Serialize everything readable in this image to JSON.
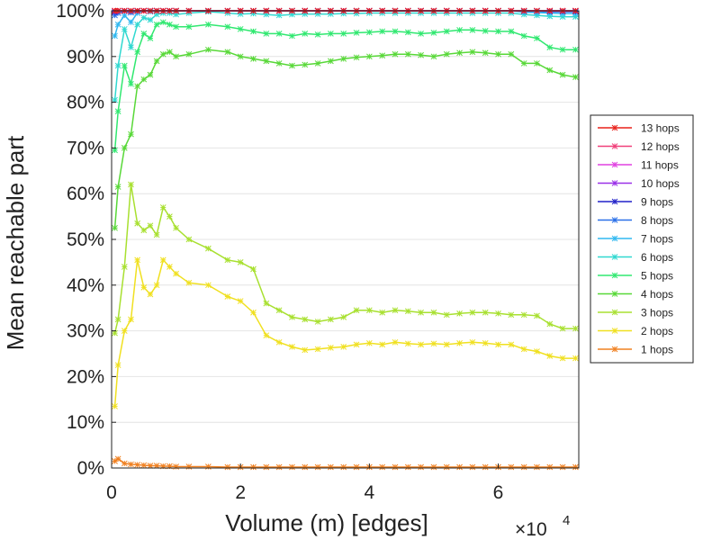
{
  "chart_data": {
    "type": "line",
    "xlabel": "Volume (m) [edges]",
    "ylabel": "Mean reachable part",
    "x_multiplier_base": "×10",
    "x_multiplier_exp": "4",
    "xlim": [
      0,
      7.25
    ],
    "ylim": [
      0,
      100
    ],
    "xticks": [
      0,
      2,
      4,
      6
    ],
    "xtick_labels": [
      "0",
      "2",
      "4",
      "6"
    ],
    "yticks": [
      0,
      10,
      20,
      30,
      40,
      50,
      60,
      70,
      80,
      90,
      100
    ],
    "ytick_labels": [
      "0%",
      "10%",
      "20%",
      "30%",
      "40%",
      "50%",
      "60%",
      "70%",
      "80%",
      "90%",
      "100%"
    ],
    "grid": true,
    "legend_position": "right",
    "x": [
      0.05,
      0.1,
      0.2,
      0.3,
      0.4,
      0.5,
      0.6,
      0.7,
      0.8,
      0.9,
      1.0,
      1.2,
      1.5,
      1.8,
      2.0,
      2.2,
      2.4,
      2.6,
      2.8,
      3.0,
      3.2,
      3.4,
      3.6,
      3.8,
      4.0,
      4.2,
      4.4,
      4.6,
      4.8,
      5.0,
      5.2,
      5.4,
      5.6,
      5.8,
      6.0,
      6.2,
      6.4,
      6.6,
      6.8,
      7.0,
      7.2
    ],
    "series": [
      {
        "name": "13 hops",
        "color": "#e8201a",
        "values": [
          100,
          100,
          100,
          100,
          100,
          100,
          100,
          100,
          100,
          100,
          100,
          100,
          100,
          100,
          100,
          100,
          100,
          100,
          100,
          100,
          100,
          100,
          100,
          100,
          100,
          100,
          100,
          100,
          100,
          100,
          100,
          100,
          100,
          100,
          100,
          100,
          100,
          100,
          100,
          100,
          100
        ]
      },
      {
        "name": "12 hops",
        "color": "#f0407a",
        "values": [
          100,
          100,
          100,
          100,
          100,
          100,
          100,
          100,
          100,
          100,
          100,
          100,
          100,
          100,
          100,
          100,
          100,
          100,
          100,
          100,
          100,
          100,
          100,
          100,
          100,
          100,
          100,
          100,
          100,
          100,
          100,
          100,
          100,
          100,
          100,
          100,
          100,
          100,
          100,
          100,
          100
        ]
      },
      {
        "name": "11 hops",
        "color": "#e040e0",
        "values": [
          100,
          100,
          100,
          100,
          100,
          100,
          100,
          100,
          100,
          100,
          100,
          100,
          100,
          100,
          100,
          100,
          100,
          100,
          100,
          100,
          100,
          100,
          100,
          100,
          100,
          100,
          100,
          100,
          100,
          100,
          100,
          100,
          100,
          100,
          100,
          100,
          100,
          100,
          100,
          100,
          100
        ]
      },
      {
        "name": "10 hops",
        "color": "#9a30e8",
        "values": [
          99.9,
          100,
          100,
          100,
          100,
          100,
          100,
          100,
          100,
          100,
          100,
          100,
          100,
          100,
          100,
          100,
          100,
          100,
          100,
          100,
          100,
          100,
          100,
          100,
          100,
          100,
          100,
          100,
          100,
          100,
          100,
          100,
          100,
          100,
          100,
          100,
          100,
          100,
          100,
          100,
          100
        ]
      },
      {
        "name": "9 hops",
        "color": "#2020c8",
        "values": [
          99.7,
          99.9,
          100,
          99.9,
          100,
          100,
          100,
          100,
          100,
          100,
          100,
          100,
          100,
          100,
          100,
          100,
          100,
          100,
          100,
          100,
          100,
          100,
          100,
          100,
          100,
          100,
          100,
          100,
          100,
          100,
          100,
          100,
          100,
          100,
          100,
          100,
          100,
          100,
          99.9,
          99.9,
          99.9
        ]
      },
      {
        "name": "8 hops",
        "color": "#2a70e8",
        "values": [
          99.0,
          99.5,
          99.9,
          99.6,
          99.9,
          100,
          100,
          100,
          100,
          100,
          100,
          100,
          100,
          100,
          100,
          100,
          100,
          100,
          100,
          100,
          100,
          100,
          100,
          100,
          100,
          100,
          100,
          100,
          100,
          100,
          100,
          100,
          100,
          100,
          100,
          100,
          99.9,
          99.9,
          99.8,
          99.8,
          99.8
        ]
      },
      {
        "name": "7 hops",
        "color": "#30b8f0",
        "values": [
          94.5,
          97.0,
          99.0,
          97.5,
          99.5,
          100,
          99.8,
          100,
          100,
          100,
          100,
          100,
          100,
          100,
          100,
          100,
          100,
          100,
          100,
          100,
          100,
          100,
          100,
          100,
          100,
          100,
          100,
          100,
          100,
          100,
          100,
          100,
          100,
          100,
          100,
          100,
          99.7,
          99.6,
          99.5,
          99.4,
          99.4
        ]
      },
      {
        "name": "6 hops",
        "color": "#30d8d0",
        "values": [
          80.5,
          88.0,
          96.0,
          92.0,
          97.0,
          98.5,
          98.0,
          99.2,
          99.5,
          99.5,
          99.2,
          99.5,
          99.8,
          99.5,
          99.3,
          99.4,
          99.2,
          99.0,
          99.2,
          99.3,
          99.3,
          99.3,
          99.4,
          99.4,
          99.5,
          99.5,
          99.5,
          99.5,
          99.5,
          99.5,
          99.5,
          99.5,
          99.5,
          99.5,
          99.5,
          99.5,
          99.2,
          99.0,
          98.8,
          98.7,
          98.7
        ]
      },
      {
        "name": "5 hops",
        "color": "#30e870",
        "values": [
          69.5,
          78.0,
          88.0,
          84.0,
          91.0,
          95.0,
          94.0,
          97.0,
          97.5,
          97.0,
          96.5,
          96.5,
          97.0,
          96.5,
          96.0,
          95.5,
          95.0,
          95.0,
          94.5,
          95.0,
          94.8,
          95.0,
          95.0,
          95.2,
          95.3,
          95.5,
          95.5,
          95.3,
          95.0,
          95.2,
          95.5,
          95.8,
          95.8,
          95.6,
          95.5,
          95.5,
          94.5,
          94.0,
          92.0,
          91.5,
          91.5
        ]
      },
      {
        "name": "4 hops",
        "color": "#58d838",
        "values": [
          52.5,
          61.5,
          70.0,
          73.0,
          83.5,
          85.0,
          86.0,
          89.0,
          90.5,
          91.0,
          90.0,
          90.5,
          91.5,
          91.0,
          90.0,
          89.5,
          89.0,
          88.5,
          88.0,
          88.2,
          88.5,
          89.0,
          89.5,
          89.8,
          90.0,
          90.2,
          90.5,
          90.5,
          90.3,
          90.0,
          90.5,
          90.8,
          91.0,
          90.8,
          90.5,
          90.5,
          88.5,
          88.5,
          87.0,
          86.0,
          85.5
        ]
      },
      {
        "name": "3 hops",
        "color": "#a8e030",
        "values": [
          29.5,
          32.5,
          44.0,
          62.0,
          53.5,
          52.0,
          53.0,
          51.0,
          57.0,
          55.0,
          52.5,
          50.0,
          48.0,
          45.5,
          45.0,
          43.5,
          36.0,
          34.5,
          33.0,
          32.5,
          32.0,
          32.5,
          33.0,
          34.5,
          34.5,
          34.0,
          34.5,
          34.3,
          34.0,
          34.0,
          33.5,
          33.8,
          34.0,
          34.0,
          33.8,
          33.5,
          33.5,
          33.3,
          31.5,
          30.5,
          30.5
        ]
      },
      {
        "name": "2 hops",
        "color": "#f0e020",
        "values": [
          13.5,
          22.5,
          30.0,
          32.5,
          45.5,
          39.5,
          38.0,
          40.0,
          45.5,
          44.0,
          42.5,
          40.5,
          40.0,
          37.5,
          36.5,
          34.0,
          29.0,
          27.5,
          26.5,
          25.8,
          26.0,
          26.3,
          26.5,
          27.0,
          27.3,
          27.0,
          27.5,
          27.2,
          27.0,
          27.2,
          27.0,
          27.3,
          27.5,
          27.3,
          27.0,
          27.0,
          26.0,
          25.5,
          24.5,
          24.0,
          24.0
        ]
      },
      {
        "name": "1 hops",
        "color": "#f08020",
        "values": [
          1.5,
          2.0,
          1.0,
          0.8,
          0.7,
          0.6,
          0.5,
          0.5,
          0.4,
          0.4,
          0.3,
          0.3,
          0.3,
          0.2,
          0.2,
          0.2,
          0.2,
          0.2,
          0.2,
          0.2,
          0.2,
          0.2,
          0.2,
          0.2,
          0.2,
          0.2,
          0.2,
          0.2,
          0.2,
          0.2,
          0.2,
          0.2,
          0.2,
          0.2,
          0.2,
          0.2,
          0.2,
          0.2,
          0.2,
          0.2,
          0.2
        ]
      }
    ]
  }
}
